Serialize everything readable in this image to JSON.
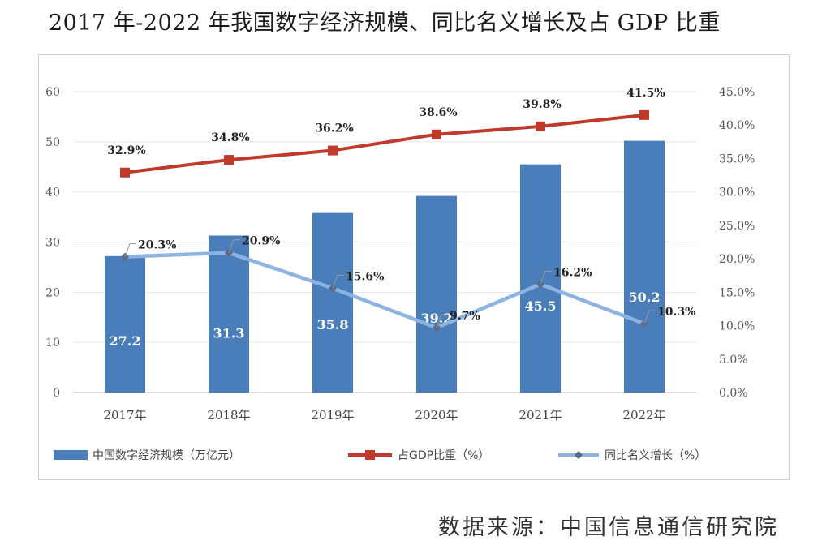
{
  "title": "2017 年-2022 年我国数字经济规模、同比名义增长及占 GDP 比重",
  "source": "数据来源：中国信息通信研究院",
  "colors": {
    "bar": "#4a7ebb",
    "gdp_share": "#c0392b",
    "growth": "#8db3e2"
  },
  "chart_data": {
    "type": "bar",
    "title": "2017 年-2022 年我国数字经济规模、同比名义增长及占 GDP 比重",
    "categories": [
      "2017年",
      "2018年",
      "2019年",
      "2020年",
      "2021年",
      "2022年"
    ],
    "left_axis": {
      "min": 0,
      "max": 60,
      "ticks": [
        "0",
        "10",
        "20",
        "30",
        "40",
        "50",
        "60"
      ]
    },
    "right_axis": {
      "min": 0,
      "max": 45,
      "ticks": [
        "0.0%",
        "5.0%",
        "10.0%",
        "15.0%",
        "20.0%",
        "25.0%",
        "30.0%",
        "35.0%",
        "40.0%",
        "45.0%"
      ]
    },
    "series": [
      {
        "name": "中国数字经济规模（万亿元）",
        "type": "bar",
        "axis": "left",
        "values": [
          27.2,
          31.3,
          35.8,
          39.2,
          45.5,
          50.2
        ],
        "labels": [
          "27.2",
          "31.3",
          "35.8",
          "39.2",
          "45.5",
          "50.2"
        ]
      },
      {
        "name": "占GDP比重（%）",
        "type": "line",
        "axis": "right",
        "marker": "square",
        "values": [
          32.9,
          34.8,
          36.2,
          38.6,
          39.8,
          41.5
        ],
        "labels": [
          "32.9%",
          "34.8%",
          "36.2%",
          "38.6%",
          "39.8%",
          "41.5%"
        ]
      },
      {
        "name": "同比名义增长（%）",
        "type": "line",
        "axis": "right",
        "marker": "diamond",
        "values": [
          20.3,
          20.9,
          15.6,
          9.7,
          16.2,
          10.3
        ],
        "labels": [
          "20.3%",
          "20.9%",
          "15.6%",
          "9.7%",
          "16.2%",
          "10.3%"
        ]
      }
    ],
    "legend_position": "bottom",
    "grid": true
  }
}
